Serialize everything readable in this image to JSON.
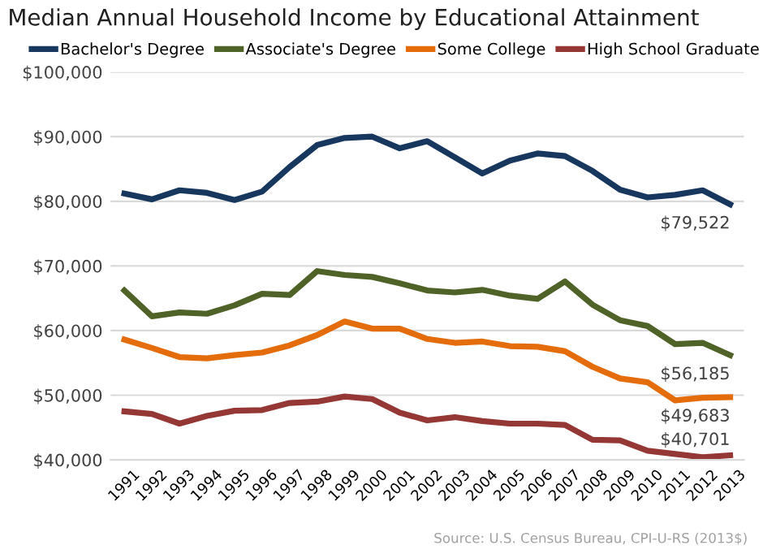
{
  "chart_data": {
    "type": "line",
    "title": "Median Annual Household Income by Educational Attainment",
    "categories": [
      "1991",
      "1992",
      "1993",
      "1994",
      "1995",
      "1996",
      "1997",
      "1998",
      "1999",
      "2000",
      "2001",
      "2002",
      "2003",
      "2004",
      "2005",
      "2006",
      "2007",
      "2008",
      "2009",
      "2010",
      "2011",
      "2012",
      "2013"
    ],
    "series": [
      {
        "name": "Bachelor's Degree",
        "color": "#17375e",
        "values": [
          81200,
          80300,
          81700,
          81300,
          80200,
          81500,
          85300,
          88700,
          89800,
          90000,
          88200,
          89300,
          86800,
          84300,
          86300,
          87400,
          87000,
          84700,
          81800,
          80600,
          81000,
          81700,
          79522
        ],
        "value_labels": [
          null,
          null,
          null,
          null,
          null,
          null,
          null,
          null,
          null,
          null,
          null,
          null,
          null,
          null,
          null,
          null,
          null,
          null,
          null,
          null,
          null,
          null,
          "$79,522"
        ]
      },
      {
        "name": "Associate's Degree",
        "color": "#4f6228",
        "values": [
          66200,
          62200,
          62800,
          62600,
          63900,
          65700,
          65500,
          69200,
          68600,
          68300,
          67300,
          66200,
          65900,
          66300,
          65400,
          64900,
          67600,
          64000,
          61600,
          60700,
          57900,
          58100,
          56185
        ],
        "value_labels": [
          null,
          null,
          null,
          null,
          null,
          null,
          null,
          null,
          null,
          null,
          null,
          null,
          null,
          null,
          null,
          null,
          null,
          null,
          null,
          null,
          null,
          null,
          "$56,185"
        ]
      },
      {
        "name": "Some College",
        "color": "#e46c0a",
        "values": [
          58600,
          57300,
          55900,
          55700,
          56200,
          56600,
          57700,
          59300,
          61400,
          60300,
          60300,
          58700,
          58100,
          58300,
          57600,
          57500,
          56800,
          54400,
          52600,
          52000,
          49200,
          49600,
          49683
        ],
        "value_labels": [
          null,
          null,
          null,
          null,
          null,
          null,
          null,
          null,
          null,
          null,
          null,
          null,
          null,
          null,
          null,
          null,
          null,
          null,
          null,
          null,
          null,
          null,
          "$49,683"
        ]
      },
      {
        "name": "High School Graduate",
        "color": "#953735",
        "values": [
          47500,
          47100,
          45600,
          46800,
          47600,
          47700,
          48800,
          49000,
          49800,
          49400,
          47300,
          46100,
          46600,
          46000,
          45600,
          45600,
          45400,
          43100,
          43000,
          41400,
          40900,
          40400,
          40701
        ],
        "value_labels": [
          null,
          null,
          null,
          null,
          null,
          null,
          null,
          null,
          null,
          null,
          null,
          null,
          null,
          null,
          null,
          null,
          null,
          null,
          null,
          null,
          null,
          null,
          "$40,701"
        ]
      }
    ],
    "ylim": [
      40000,
      100000
    ],
    "yticks": [
      {
        "value": 40000,
        "label": "$40,000"
      },
      {
        "value": 50000,
        "label": "$50,000"
      },
      {
        "value": 60000,
        "label": "$60,000"
      },
      {
        "value": 70000,
        "label": "$70,000"
      },
      {
        "value": 80000,
        "label": "$80,000"
      },
      {
        "value": 90000,
        "label": "$90,000"
      },
      {
        "value": 100000,
        "label": "$100,000"
      }
    ],
    "grid": "y",
    "legend": "top",
    "marker": "none",
    "line_style": "solid",
    "annotations": [
      "Source: U.S. Census Bureau, CPI-U-RS (2013$)"
    ]
  }
}
